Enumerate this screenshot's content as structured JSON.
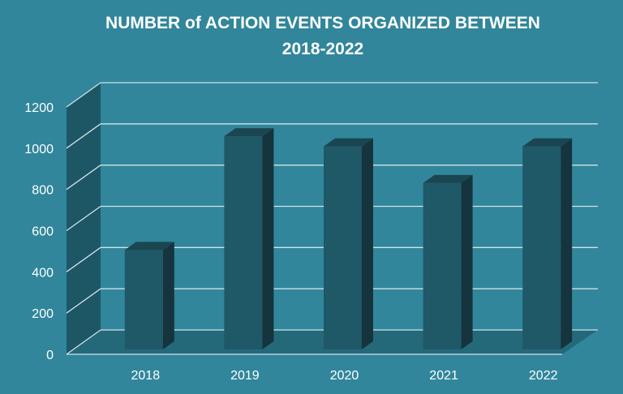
{
  "chart_data": {
    "type": "bar",
    "title_lines": [
      "NUMBER of ACTION EVENTS ORGANIZED BETWEEN",
      "2018-2022"
    ],
    "categories": [
      "2018",
      "2019",
      "2020",
      "2021",
      "2022"
    ],
    "values": [
      490,
      1050,
      1000,
      820,
      1000
    ],
    "ylim": [
      0,
      1200
    ],
    "y_ticks": [
      0,
      200,
      400,
      600,
      800,
      1000,
      1200
    ],
    "grid": true,
    "style": "3d-column",
    "colors": {
      "background": "#31869b",
      "bar_front": "#1f5866",
      "bar_side": "#15343d",
      "bar_top": "#1a4651",
      "wall": "#1d5766",
      "floor": "#24697a"
    }
  }
}
